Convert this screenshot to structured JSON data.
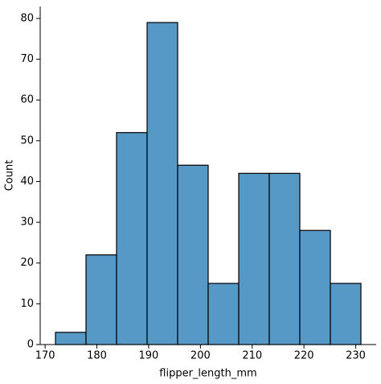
{
  "chart_data": {
    "type": "histogram",
    "x_label": "flipper_length_mm",
    "y_label": "Count",
    "bins": [
      172,
      177.9,
      183.8,
      189.7,
      195.6,
      201.5,
      207.4,
      213.3,
      219.2,
      225.1,
      231
    ],
    "values": [
      3,
      22,
      52,
      79,
      44,
      15,
      42,
      42,
      28,
      15
    ],
    "color": "#5799c6",
    "edgecolor": "#000000",
    "xlim": [
      169.05,
      233.95
    ],
    "xticks": [
      170,
      180,
      190,
      200,
      210,
      220,
      230
    ],
    "ylim": [
      0,
      82.95
    ],
    "yticks": [
      0,
      10,
      20,
      30,
      40,
      50,
      60,
      70,
      80
    ],
    "grid": false
  }
}
